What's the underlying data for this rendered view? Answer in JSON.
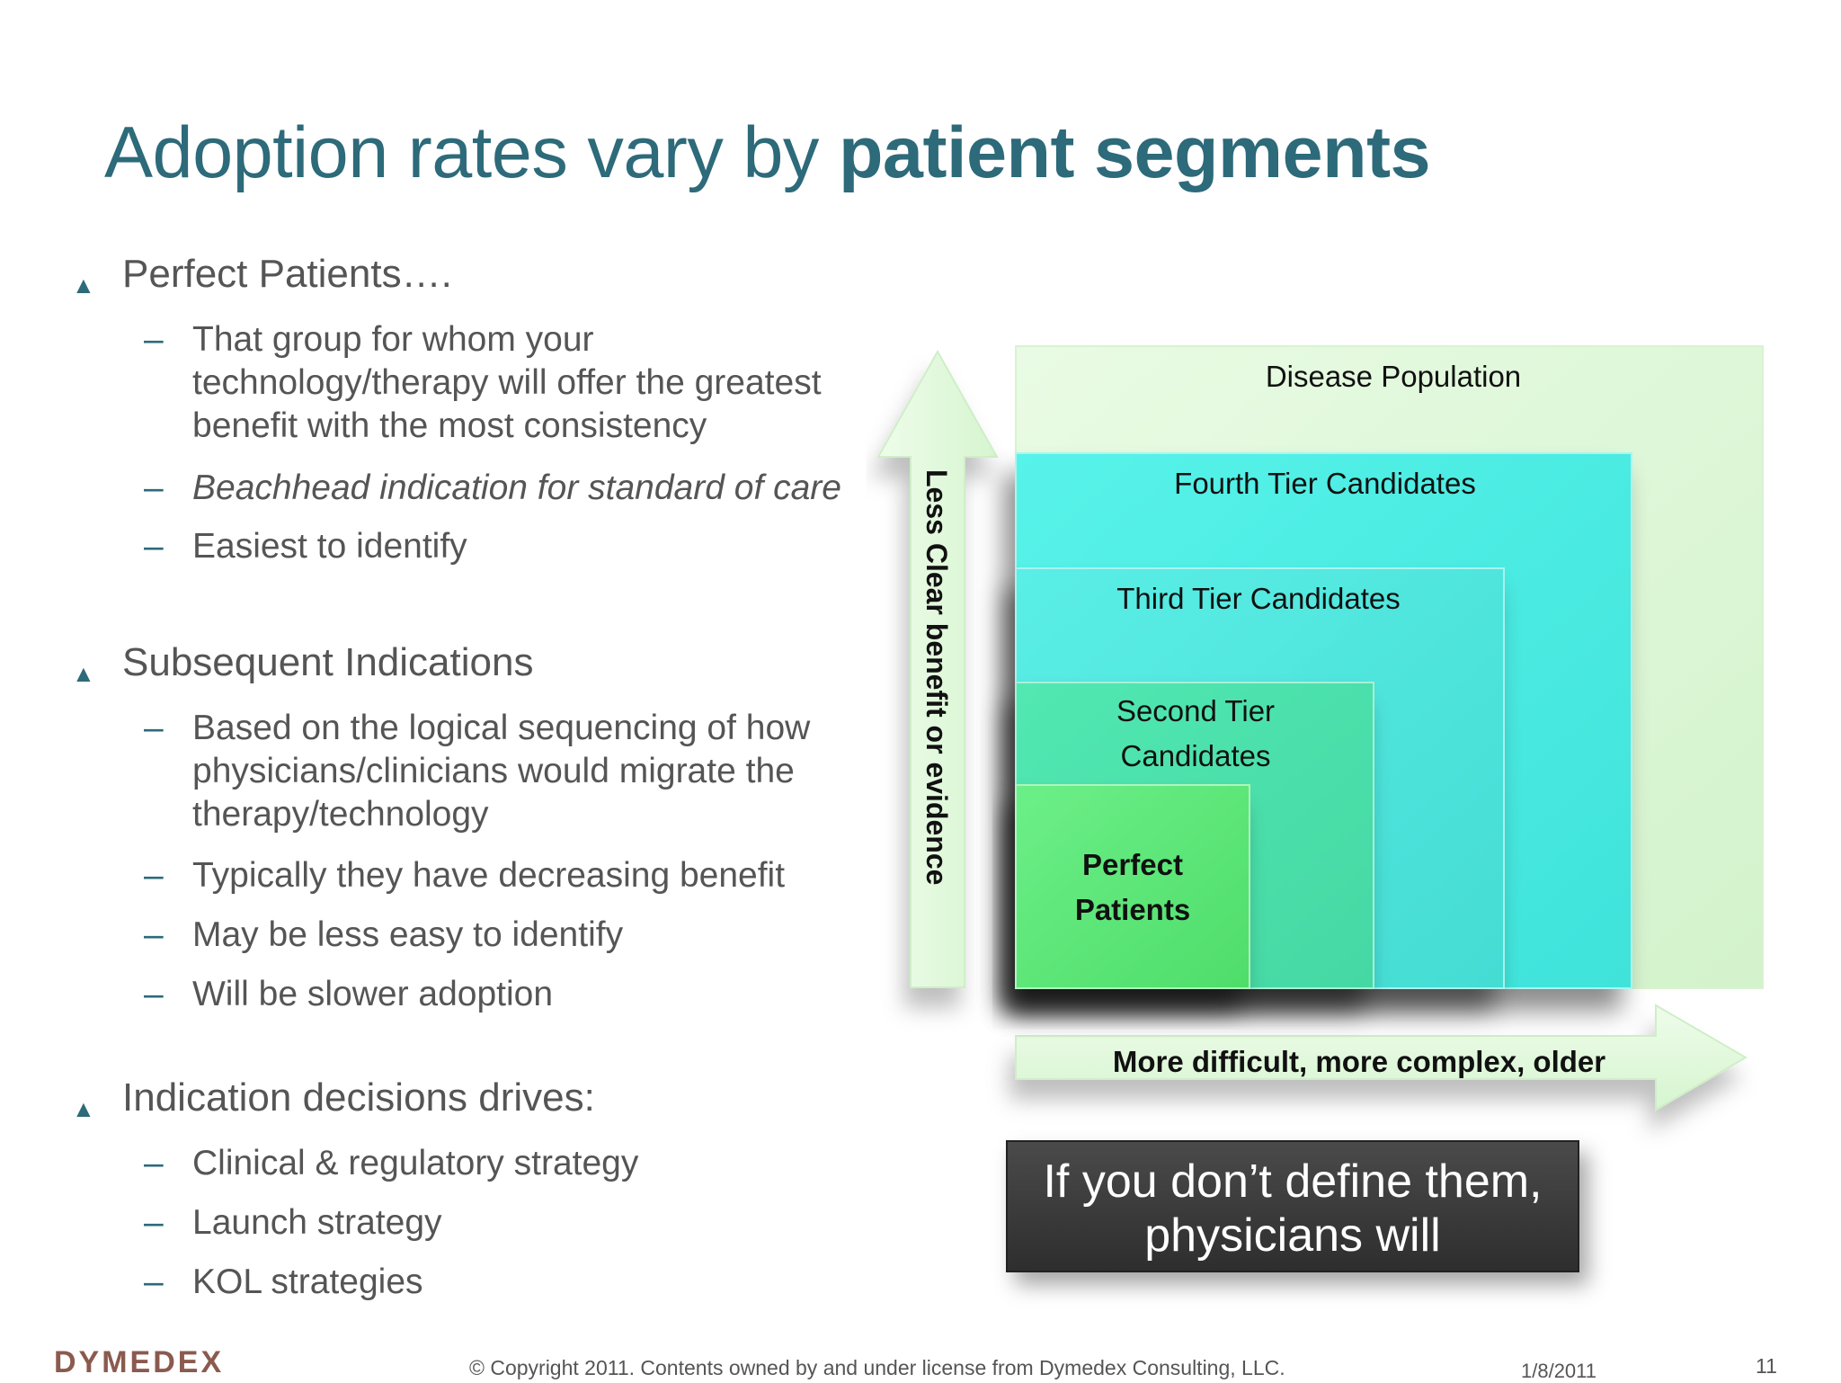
{
  "title": {
    "normal": "Adoption rates vary by ",
    "bold": "patient segments"
  },
  "bullets": [
    {
      "text": "Perfect Patients….",
      "subs": [
        {
          "text": "That group for whom your technology/therapy will offer the greatest benefit with the most consistency",
          "italic": false
        },
        {
          "text": "Beachhead indication for standard of care",
          "italic": true
        },
        {
          "text": "Easiest to identify",
          "italic": false
        }
      ]
    },
    {
      "text": "Subsequent Indications",
      "subs": [
        {
          "text": "Based on the logical sequencing of how physicians/clinicians would migrate the therapy/technology",
          "italic": false
        },
        {
          "text": "Typically they have decreasing benefit",
          "italic": false
        },
        {
          "text": "May be less easy to identify",
          "italic": false
        },
        {
          "text": "Will be slower adoption",
          "italic": false
        }
      ]
    },
    {
      "text": "Indication decisions drives:",
      "subs": [
        {
          "text": "Clinical & regulatory strategy",
          "italic": false
        },
        {
          "text": "Launch strategy",
          "italic": false
        },
        {
          "text": "KOL strategies",
          "italic": false
        }
      ]
    }
  ],
  "diagram": {
    "y_axis_label": "Less Clear benefit or evidence",
    "x_axis_label": "More difficult, more complex, older",
    "tiers": [
      {
        "label": "Disease Population"
      },
      {
        "label": "Fourth Tier Candidates"
      },
      {
        "label": "Third Tier Candidates"
      },
      {
        "label": "Second Tier Candidates",
        "lines": [
          "Second Tier",
          "Candidates"
        ]
      },
      {
        "label": "Perfect Patients",
        "lines": [
          "Perfect",
          "Patients"
        ]
      }
    ],
    "colors": {
      "disease": "#dff7d8",
      "fourth": "#4ef0e6",
      "third": "#4ee6de",
      "second": "#4ee0a8",
      "perfect": "#5ce87a",
      "arrow": "#e6fadf"
    }
  },
  "callout": {
    "line1": "If you don’t define them,",
    "line2": "physicians will"
  },
  "footer": {
    "logo": "DYMEDEX",
    "copyright": "© Copyright 2011.   Contents owned by and under license from Dymedex Consulting, LLC.",
    "date": "1/8/2011",
    "page": "11"
  }
}
